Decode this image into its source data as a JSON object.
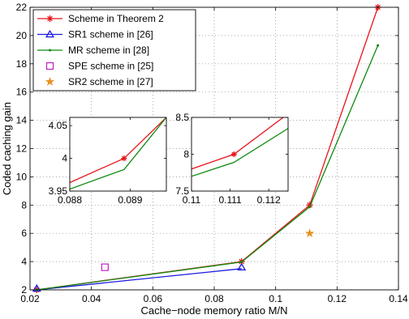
{
  "chart_data": {
    "type": "line",
    "title": "",
    "xlabel": "Cache−node memory ratio M/N",
    "ylabel": "Coded caching gain",
    "xlim": [
      0.02,
      0.14
    ],
    "ylim": [
      2,
      22
    ],
    "xticks": [
      0.02,
      0.04,
      0.06,
      0.08,
      0.1,
      0.12,
      0.14
    ],
    "xtick_labels": [
      "0.02",
      "0.04",
      "0.06",
      "0.08",
      "0.1",
      "0.12",
      "0.14"
    ],
    "yticks": [
      2,
      4,
      6,
      8,
      10,
      12,
      14,
      16,
      18,
      20,
      22
    ],
    "ytick_labels": [
      "2",
      "4",
      "6",
      "8",
      "10",
      "12",
      "14",
      "16",
      "18",
      "20",
      "22"
    ],
    "grid": true,
    "grid_style": "dotted",
    "legend_position": "top-left",
    "series": [
      {
        "name": "Scheme in Theorem 2",
        "color": "#e8141b",
        "marker": "asterisk",
        "line": true,
        "x": [
          0.0222,
          0.0889,
          0.1111,
          0.1333
        ],
        "y": [
          2.0,
          4.0,
          8.0,
          22.0
        ]
      },
      {
        "name": "SR1 scheme in [26]",
        "color": "#1a1ae0",
        "marker": "triangle",
        "line": true,
        "x": [
          0.0222,
          0.0889
        ],
        "y": [
          2.0,
          3.5
        ]
      },
      {
        "name": "MR scheme in [28]",
        "color": "#0e8a0e",
        "marker": "dot",
        "line": true,
        "x": [
          0.0222,
          0.0889,
          0.1111,
          0.1333
        ],
        "y": [
          2.0,
          3.97,
          7.88,
          19.3
        ]
      },
      {
        "name": "SPE scheme in [25]",
        "color": "#c21ec2",
        "marker": "square",
        "line": false,
        "x": [
          0.0444
        ],
        "y": [
          3.6
        ]
      },
      {
        "name": "SR2 scheme in [27]",
        "color": "#e8901e",
        "marker": "star",
        "line": false,
        "x": [
          0.1111
        ],
        "y": [
          6.0
        ]
      }
    ],
    "insets": [
      {
        "xlim": [
          0.088,
          0.0896
        ],
        "ylim": [
          3.95,
          4.0625
        ],
        "xticks": [
          0.088,
          0.089
        ],
        "xtick_labels": [
          "0.088",
          "0.089"
        ],
        "yticks": [
          3.95,
          4.0,
          4.05
        ],
        "ytick_labels": [
          "3.95",
          "4",
          "4.05"
        ],
        "series": [
          {
            "color": "#e8141b",
            "marker": "asterisk",
            "x": [
              0.088,
              0.0889,
              0.0896
            ],
            "y": [
              3.963,
              4.0,
              4.0625
            ]
          },
          {
            "color": "#0e8a0e",
            "marker": "none",
            "x": [
              0.088,
              0.0889,
              0.0896
            ],
            "y": [
              3.953,
              3.983,
              4.0625
            ]
          }
        ]
      },
      {
        "xlim": [
          0.11,
          0.1125
        ],
        "ylim": [
          7.5,
          8.5
        ],
        "xticks": [
          0.11,
          0.111,
          0.112
        ],
        "xtick_labels": [
          "0.11",
          "0.111",
          "0.112"
        ],
        "yticks": [
          7.5,
          8.0,
          8.5
        ],
        "ytick_labels": [
          "7.5",
          "8",
          "8.5"
        ],
        "series": [
          {
            "color": "#e8141b",
            "marker": "asterisk",
            "x": [
              0.11,
              0.1111,
              0.1125
            ],
            "y": [
              7.8,
              8.0,
              8.55
            ]
          },
          {
            "color": "#0e8a0e",
            "marker": "none",
            "x": [
              0.11,
              0.1111,
              0.1125
            ],
            "y": [
              7.7,
              7.89,
              8.35
            ]
          }
        ]
      }
    ]
  }
}
